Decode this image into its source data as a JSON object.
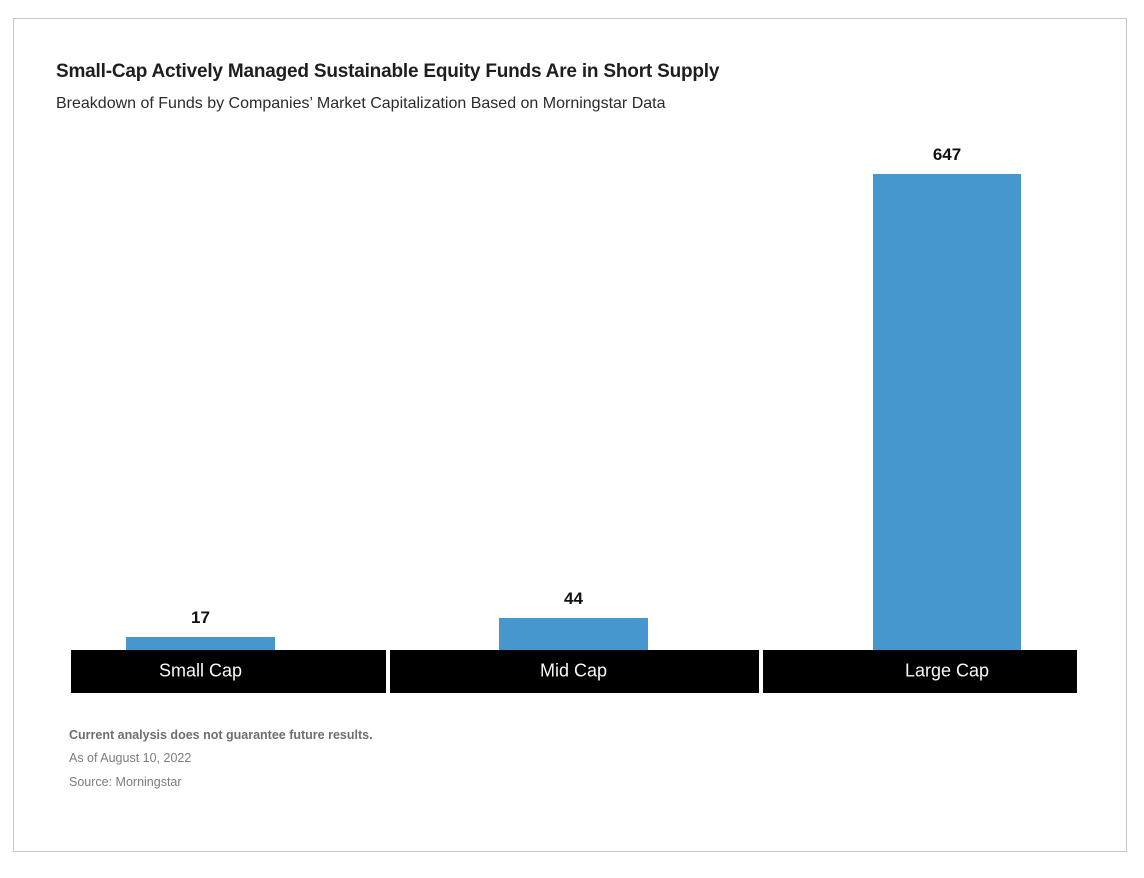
{
  "page": {
    "background": "#ffffff",
    "card_border_color": "#c5c7c9"
  },
  "header": {
    "title": "Small-Cap Actively Managed Sustainable Equity Funds Are in Short Supply",
    "subtitle": "Breakdown of Funds by Companies’ Market Capitalization Based on Morningstar Data"
  },
  "chart_data": {
    "type": "bar",
    "categories": [
      "Small Cap",
      "Mid Cap",
      "Large Cap"
    ],
    "values": [
      17,
      44,
      647
    ],
    "value_labels": [
      "17",
      "44",
      "647"
    ],
    "title": "Small-Cap Actively Managed Sustainable Equity Funds Are in Short Supply",
    "subtitle": "Breakdown of Funds by Companies’ Market Capitalization Based on Morningstar Data",
    "xlabel": "",
    "ylabel": "",
    "ylim": [
      0,
      647
    ],
    "grid": false,
    "legend": false,
    "value_label_position": "above-bar",
    "bar_color": "#4697CE",
    "category_band_color": "#000000",
    "category_label_color": "#f7f7f7",
    "value_label_color": "#111111"
  },
  "footnotes": {
    "disclaimer": "Current analysis does not guarantee future results.",
    "as_of": "As of August 10, 2022",
    "source": "Source: Morningstar"
  }
}
